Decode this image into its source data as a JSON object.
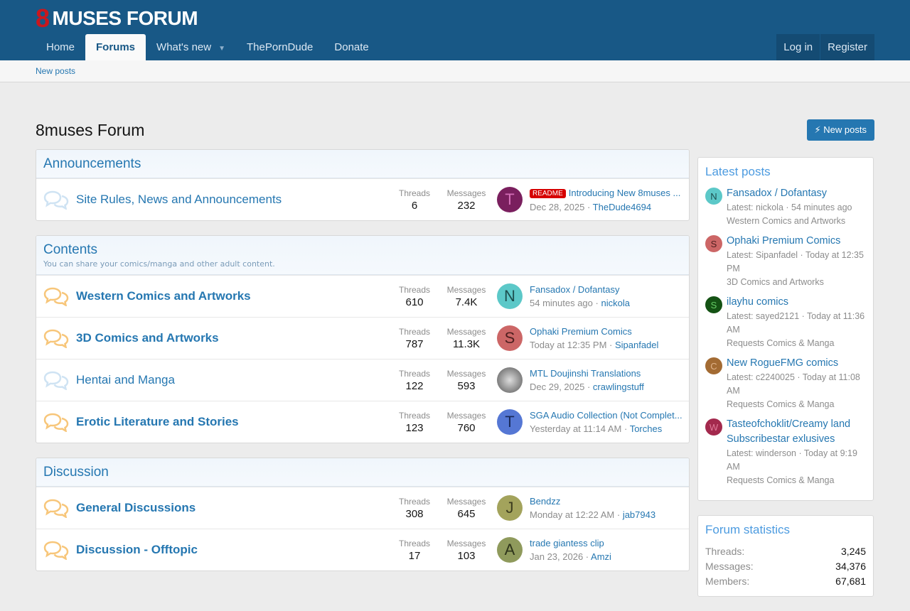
{
  "header": {
    "logo_mark": "8",
    "logo_text": "MUSES FORUM",
    "nav": [
      {
        "label": "Home"
      },
      {
        "label": "Forums",
        "active": true
      },
      {
        "label": "What's new",
        "caret": true
      },
      {
        "label": "ThePornDude"
      },
      {
        "label": "Donate"
      }
    ],
    "login": "Log in",
    "register": "Register"
  },
  "subnav": {
    "new_posts": "New posts"
  },
  "page": {
    "title": "8muses Forum",
    "new_posts_button": "New posts"
  },
  "colors": {
    "brand": "#185886",
    "link": "#2577b1",
    "badge": "#d60000"
  },
  "categories": [
    {
      "title": "Announcements",
      "description": "",
      "nodes": [
        {
          "title": "Site Rules, News and Announcements",
          "unread": false,
          "threads_label": "Threads",
          "threads": "6",
          "messages_label": "Messages",
          "messages": "232",
          "avatar": "T",
          "avatar_bg": "#7a1f5e",
          "avatar_fg": "#d46fb8",
          "badge": "README",
          "latest_title": "Introducing New 8muses ...",
          "latest_date": "Dec 28, 2025",
          "latest_user": "TheDude4694"
        }
      ]
    },
    {
      "title": "Contents",
      "description": "You can share your comics/manga and other adult content.",
      "nodes": [
        {
          "title": "Western Comics and Artworks",
          "unread": true,
          "threads_label": "Threads",
          "threads": "610",
          "messages_label": "Messages",
          "messages": "7.4K",
          "avatar": "N",
          "avatar_bg": "#5cc8c8",
          "avatar_fg": "#1d4d4d",
          "latest_title": "Fansadox / Dofantasy",
          "latest_date": "54 minutes ago",
          "latest_user": "nickola"
        },
        {
          "title": "3D Comics and Artworks",
          "unread": true,
          "threads_label": "Threads",
          "threads": "787",
          "messages_label": "Messages",
          "messages": "11.3K",
          "avatar": "S",
          "avatar_bg": "#cc6666",
          "avatar_fg": "#4d1f1f",
          "latest_title": "Ophaki Premium Comics",
          "latest_date": "Today at 12:35 PM",
          "latest_user": "Sipanfadel"
        },
        {
          "title": "Hentai and Manga",
          "unread": false,
          "threads_label": "Threads",
          "threads": "122",
          "messages_label": "Messages",
          "messages": "593",
          "avatar": "",
          "avatar_bg": "#9a9a9a",
          "avatar_fg": "#fff",
          "latest_title": "MTL Doujinshi Translations",
          "latest_date": "Dec 29, 2025",
          "latest_user": "crawlingstuff"
        },
        {
          "title": "Erotic Literature and Stories",
          "unread": true,
          "threads_label": "Threads",
          "threads": "123",
          "messages_label": "Messages",
          "messages": "760",
          "avatar": "T",
          "avatar_bg": "#5577d4",
          "avatar_fg": "#1a2a5a",
          "latest_title": "SGA Audio Collection (Not Complet...",
          "latest_date": "Yesterday at 11:14 AM",
          "latest_user": "Torches"
        }
      ]
    },
    {
      "title": "Discussion",
      "description": "",
      "nodes": [
        {
          "title": "General Discussions",
          "unread": true,
          "threads_label": "Threads",
          "threads": "308",
          "messages_label": "Messages",
          "messages": "645",
          "avatar": "J",
          "avatar_bg": "#a3a35c",
          "avatar_fg": "#3d3d1f",
          "latest_title": "Bendzz",
          "latest_date": "Monday at 12:22 AM",
          "latest_user": "jab7943"
        },
        {
          "title": "Discussion - Offtopic",
          "unread": true,
          "threads_label": "Threads",
          "threads": "17",
          "messages_label": "Messages",
          "messages": "103",
          "avatar": "A",
          "avatar_bg": "#8f9a5c",
          "avatar_fg": "#2d331a",
          "latest_title": "trade giantess clip",
          "latest_date": "Jan 23, 2026",
          "latest_user": "Amzi"
        }
      ]
    }
  ],
  "sidebar": {
    "latest_posts": {
      "title": "Latest posts",
      "items": [
        {
          "avatar": "N",
          "avatar_bg": "#5cc8c8",
          "avatar_fg": "#1d4d4d",
          "title": "Fansadox / Dofantasy",
          "meta": "Latest: nickola · 54 minutes ago",
          "forum": "Western Comics and Artworks"
        },
        {
          "avatar": "S",
          "avatar_bg": "#cc6666",
          "avatar_fg": "#4d1f1f",
          "title": "Ophaki Premium Comics",
          "meta": "Latest: Sipanfadel · Today at 12:35 PM",
          "forum": "3D Comics and Artworks"
        },
        {
          "avatar": "S",
          "avatar_bg": "#145214",
          "avatar_fg": "#66cc66",
          "title": "ilayhu comics",
          "meta": "Latest: sayed2121 · Today at 11:36 AM",
          "forum": "Requests Comics & Manga"
        },
        {
          "avatar": "C",
          "avatar_bg": "#a36b33",
          "avatar_fg": "#e0b38a",
          "title": "New RogueFMG comics",
          "meta": "Latest: c2240025 · Today at 11:08 AM",
          "forum": "Requests Comics & Manga"
        },
        {
          "avatar": "W",
          "avatar_bg": "#a3294d",
          "avatar_fg": "#e07a99",
          "title": "Tasteofchoklit/Creamy land Subscribestar exlusives",
          "meta": "Latest: winderson · Today at 9:19 AM",
          "forum": "Requests Comics & Manga"
        }
      ]
    },
    "stats": {
      "title": "Forum statistics",
      "rows": [
        {
          "label": "Threads:",
          "value": "3,245"
        },
        {
          "label": "Messages:",
          "value": "34,376"
        },
        {
          "label": "Members:",
          "value": "67,681"
        }
      ]
    }
  }
}
